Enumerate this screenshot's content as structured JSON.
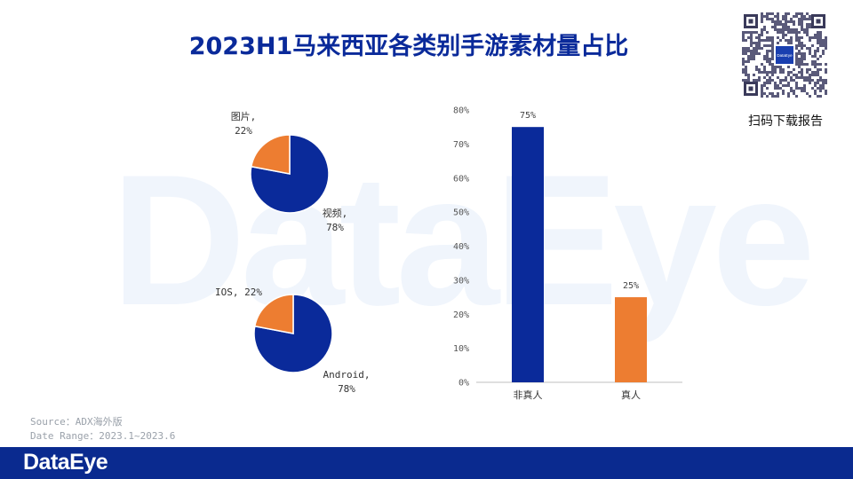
{
  "title": "2023H1马来西亚各类别手游素材量占比",
  "watermark": "DataEye",
  "qr": {
    "label": "扫码下载报告",
    "center_text": "DataEye"
  },
  "source": {
    "line1": "Source：ADX海外版",
    "line2": "Date Range：2023.1~2023.6"
  },
  "footer": {
    "logo": "DataEye"
  },
  "colors": {
    "blue": "#0a2a9a",
    "orange": "#ed7d31",
    "footer": "#0a2a8f"
  },
  "chart_data": [
    {
      "type": "pie",
      "slices": [
        {
          "label": "视频,",
          "value": 78,
          "value_label": "78%",
          "color": "#0a2a9a"
        },
        {
          "label": "图片,",
          "value": 22,
          "value_label": "22%",
          "color": "#ed7d31"
        }
      ]
    },
    {
      "type": "pie",
      "slices": [
        {
          "label": "Android,",
          "value": 78,
          "value_label": "78%",
          "color": "#0a2a9a"
        },
        {
          "label": "IOS, 22%",
          "value": 22,
          "value_label": "",
          "color": "#ed7d31"
        }
      ]
    },
    {
      "type": "bar",
      "categories": [
        "非真人",
        "真人"
      ],
      "values": [
        75,
        25
      ],
      "data_labels": [
        "75%",
        "25%"
      ],
      "colors": [
        "#0a2a9a",
        "#ed7d31"
      ],
      "ylim": [
        0,
        80
      ],
      "yticks": [
        "0%",
        "10%",
        "20%",
        "30%",
        "40%",
        "50%",
        "60%",
        "70%",
        "80%"
      ],
      "grid": false
    }
  ]
}
